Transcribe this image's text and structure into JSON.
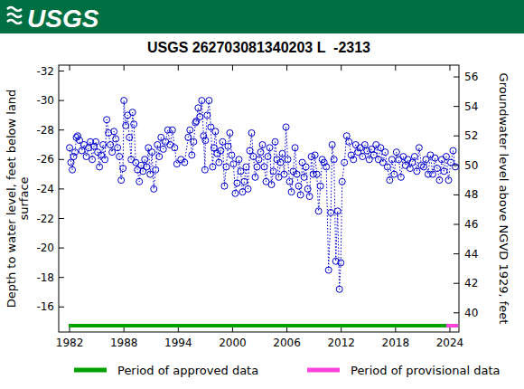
{
  "header": {
    "logo": "USGS"
  },
  "chart_data": {
    "type": "scatter",
    "title": "USGS 262703081340203 L  -2313",
    "ylabel": [
      "Depth to water level, feet below land",
      "surface"
    ],
    "y2label": "Groundwater level above NGVD 1929, feet",
    "xlim": [
      1980.8,
      2025.0
    ],
    "xticks": [
      1982,
      1988,
      1994,
      2000,
      2006,
      2012,
      2018,
      2024
    ],
    "ylim": [
      -14.3,
      -32.4
    ],
    "yticks": [
      -32,
      -30,
      -28,
      -26,
      -24,
      -22,
      -20,
      -18,
      -16
    ],
    "y2lim": [
      38.7,
      56.8
    ],
    "y2ticks": [
      40,
      42,
      44,
      46,
      48,
      50,
      52,
      54,
      56
    ],
    "grid": false,
    "legend": "bottom",
    "periods": [
      {
        "name": "Period of approved data",
        "color": "#00a000",
        "start": 1981.9,
        "end": 2023.6
      },
      {
        "name": "Period of provisional data",
        "color": "#ff44dd",
        "start": 2023.6,
        "end": 2024.9
      }
    ],
    "series": [
      {
        "name": "Depth to water level",
        "color": "#0000cc",
        "marker": "circle",
        "line_style": "dotted",
        "x": [
          1982.0,
          1982.15,
          1982.3,
          1982.45,
          1982.6,
          1982.75,
          1982.9,
          1983.1,
          1983.35,
          1983.6,
          1983.85,
          1984.1,
          1984.3,
          1984.5,
          1984.7,
          1984.9,
          1985.1,
          1985.3,
          1985.5,
          1985.7,
          1985.9,
          1986.1,
          1986.3,
          1986.5,
          1986.7,
          1986.9,
          1987.1,
          1987.3,
          1987.5,
          1987.7,
          1987.9,
          1988.0,
          1988.2,
          1988.4,
          1988.6,
          1988.8,
          1988.95,
          1989.1,
          1989.3,
          1989.5,
          1989.7,
          1989.9,
          1990.1,
          1990.3,
          1990.5,
          1990.7,
          1990.9,
          1991.1,
          1991.3,
          1991.5,
          1991.7,
          1991.9,
          1992.1,
          1992.35,
          1992.6,
          1992.85,
          1993.1,
          1993.35,
          1993.6,
          1993.85,
          1994.3,
          1994.7,
          1995.1,
          1995.3,
          1995.5,
          1995.7,
          1995.9,
          1996.0,
          1996.2,
          1996.4,
          1996.6,
          1996.8,
          1996.95,
          1997.0,
          1997.2,
          1997.4,
          1997.6,
          1997.8,
          1997.95,
          1998.1,
          1998.3,
          1998.5,
          1998.7,
          1998.9,
          1999.1,
          1999.3,
          1999.5,
          1999.7,
          1999.9,
          2000.1,
          2000.3,
          2000.5,
          2000.7,
          2000.9,
          2001.1,
          2001.3,
          2001.5,
          2001.7,
          2001.9,
          2002.1,
          2002.3,
          2002.5,
          2002.7,
          2002.9,
          2003.1,
          2003.3,
          2003.5,
          2003.7,
          2003.9,
          2004.1,
          2004.3,
          2004.5,
          2004.7,
          2004.9,
          2005.1,
          2005.3,
          2005.5,
          2005.7,
          2005.9,
          2006.1,
          2006.3,
          2006.5,
          2006.7,
          2006.9,
          2007.1,
          2007.3,
          2007.5,
          2007.7,
          2007.9,
          2008.1,
          2008.3,
          2008.5,
          2008.7,
          2008.9,
          2009.1,
          2009.3,
          2009.5,
          2009.7,
          2009.9,
          2010.1,
          2010.35,
          2010.6,
          2010.85,
          2011.0,
          2011.2,
          2011.4,
          2011.6,
          2011.8,
          2011.95,
          2012.1,
          2012.35,
          2012.6,
          2012.85,
          2013.1,
          2013.35,
          2013.6,
          2013.85,
          2014.1,
          2014.35,
          2014.6,
          2014.85,
          2015.1,
          2015.35,
          2015.6,
          2015.85,
          2016.1,
          2016.35,
          2016.6,
          2016.85,
          2017.1,
          2017.35,
          2017.6,
          2017.85,
          2018.1,
          2018.35,
          2018.6,
          2018.85,
          2019.1,
          2019.35,
          2019.6,
          2019.85,
          2020.1,
          2020.35,
          2020.6,
          2020.85,
          2021.1,
          2021.35,
          2021.6,
          2021.85,
          2022.1,
          2022.35,
          2022.6,
          2022.85,
          2023.1,
          2023.35,
          2023.6,
          2023.85,
          2024.1,
          2024.35,
          2024.6
        ],
        "values": [
          -26.8,
          -25.8,
          -25.3,
          -26.2,
          -26.5,
          -27.5,
          -27.6,
          -27.3,
          -26.6,
          -27.0,
          -26.2,
          -26.8,
          -27.2,
          -26.0,
          -26.9,
          -27.2,
          -26.5,
          -25.5,
          -26.3,
          -27.0,
          -26.0,
          -28.7,
          -27.8,
          -27.0,
          -26.5,
          -27.9,
          -27.4,
          -26.8,
          -26.2,
          -24.6,
          -25.4,
          -30.0,
          -28.3,
          -29.0,
          -27.5,
          -26.0,
          -29.2,
          -28.4,
          -25.8,
          -25.3,
          -24.5,
          -25.6,
          -25.2,
          -26.0,
          -25.5,
          -26.8,
          -25.0,
          -26.5,
          -24.0,
          -25.3,
          -27.0,
          -26.2,
          -27.5,
          -26.7,
          -27.2,
          -28.0,
          -27.0,
          -28.0,
          -26.8,
          -25.7,
          -26.0,
          -25.8,
          -27.5,
          -28.0,
          -26.3,
          -27.2,
          -28.5,
          -28.6,
          -29.5,
          -28.9,
          -30.0,
          -27.6,
          -25.3,
          -27.3,
          -29.0,
          -30.0,
          -28.2,
          -25.5,
          -26.8,
          -27.9,
          -26.4,
          -25.8,
          -26.6,
          -27.2,
          -24.2,
          -25.5,
          -26.9,
          -27.8,
          -26.3,
          -25.7,
          -23.7,
          -24.4,
          -26.0,
          -25.2,
          -23.8,
          -24.5,
          -25.5,
          -24.0,
          -26.6,
          -27.8,
          -26.2,
          -24.8,
          -25.5,
          -26.0,
          -26.5,
          -27.0,
          -25.5,
          -24.5,
          -26.2,
          -26.8,
          -24.3,
          -25.2,
          -27.2,
          -26.0,
          -24.8,
          -25.8,
          -26.4,
          -25.0,
          -28.2,
          -26.0,
          -24.5,
          -23.8,
          -25.2,
          -26.8,
          -25.0,
          -24.2,
          -23.6,
          -25.8,
          -24.8,
          -25.5,
          -24.0,
          -23.5,
          -26.2,
          -25.0,
          -26.3,
          -25.0,
          -22.5,
          -24.2,
          -26.0,
          -25.8,
          -25.5,
          -18.5,
          -22.4,
          -27.0,
          -26.0,
          -19.1,
          -22.5,
          -17.2,
          -19.0,
          -24.5,
          -25.8,
          -27.6,
          -27.2,
          -26.3,
          -26.0,
          -27.0,
          -26.5,
          -26.8,
          -26.2,
          -27.0,
          -26.6,
          -26.0,
          -26.7,
          -26.3,
          -27.0,
          -26.0,
          -26.8,
          -25.8,
          -26.5,
          -25.5,
          -24.6,
          -26.0,
          -25.0,
          -26.5,
          -26.0,
          -24.8,
          -26.2,
          -25.6,
          -26.0,
          -25.4,
          -25.8,
          -26.2,
          -25.2,
          -26.8,
          -25.6,
          -25.5,
          -26.0,
          -25.0,
          -26.3,
          -25.0,
          -26.1,
          -25.4,
          -24.6,
          -26.0,
          -25.2,
          -26.2,
          -24.6,
          -25.8,
          -26.6,
          -25.5
        ]
      }
    ]
  }
}
